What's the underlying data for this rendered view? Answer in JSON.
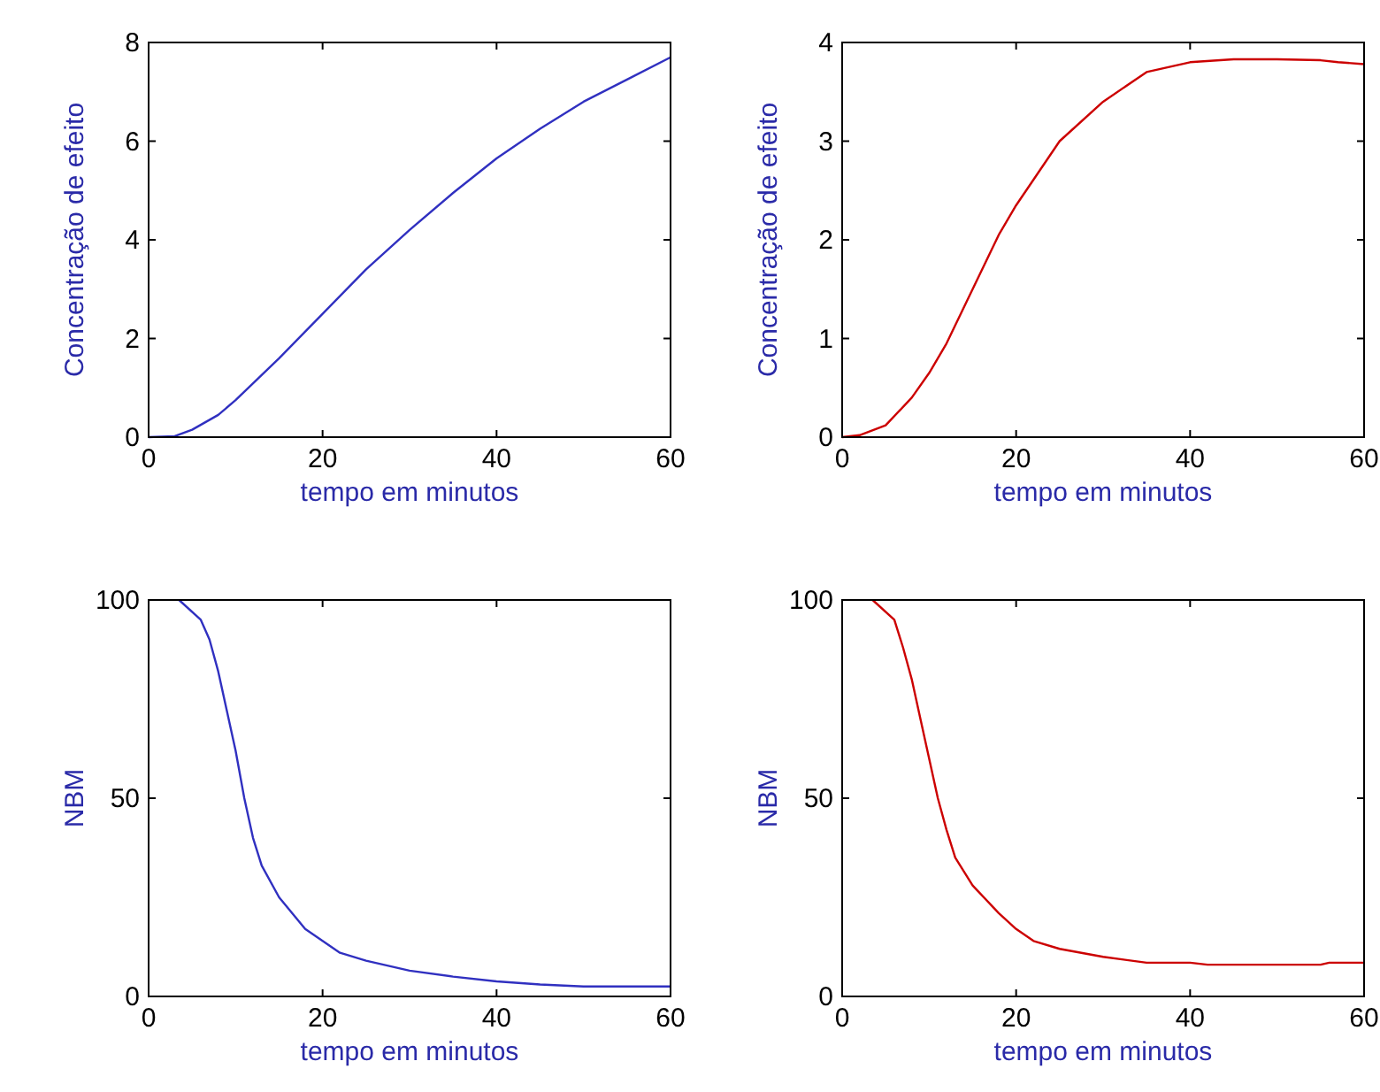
{
  "chart_data": [
    {
      "type": "line",
      "xlabel": "tempo em minutos",
      "ylabel": "Concentração de efeito",
      "xlim": [
        0,
        60
      ],
      "ylim": [
        0,
        8
      ],
      "xticks": [
        0,
        20,
        40,
        60
      ],
      "yticks": [
        0,
        2,
        4,
        6,
        8
      ],
      "grid": false,
      "series": [
        {
          "color": "#3030c0",
          "x": [
            0,
            3,
            5,
            8,
            10,
            15,
            20,
            25,
            30,
            35,
            40,
            45,
            50,
            55,
            60
          ],
          "values": [
            0,
            0.02,
            0.15,
            0.45,
            0.75,
            1.6,
            2.5,
            3.4,
            4.2,
            4.95,
            5.65,
            6.25,
            6.8,
            7.25,
            7.7
          ]
        }
      ]
    },
    {
      "type": "line",
      "xlabel": "tempo em minutos",
      "ylabel": "Concentração de efeito",
      "xlim": [
        0,
        60
      ],
      "ylim": [
        0,
        4
      ],
      "xticks": [
        0,
        20,
        40,
        60
      ],
      "yticks": [
        0,
        1,
        2,
        3,
        4
      ],
      "grid": false,
      "series": [
        {
          "color": "#cc0000",
          "x": [
            0,
            2,
            5,
            8,
            10,
            12,
            15,
            18,
            20,
            25,
            30,
            35,
            40,
            45,
            50,
            55,
            57,
            60
          ],
          "values": [
            0,
            0.02,
            0.12,
            0.4,
            0.65,
            0.95,
            1.5,
            2.05,
            2.35,
            3.0,
            3.4,
            3.7,
            3.8,
            3.83,
            3.83,
            3.82,
            3.8,
            3.78
          ]
        }
      ]
    },
    {
      "type": "line",
      "xlabel": "tempo em minutos",
      "ylabel": "NBM",
      "xlim": [
        0,
        60
      ],
      "ylim": [
        0,
        100
      ],
      "xticks": [
        0,
        20,
        40,
        60
      ],
      "yticks": [
        0,
        50,
        100
      ],
      "grid": false,
      "series": [
        {
          "color": "#3030c0",
          "x": [
            3.5,
            6,
            7,
            8,
            9,
            10,
            11,
            12,
            13,
            15,
            18,
            20,
            22,
            25,
            30,
            35,
            40,
            45,
            50,
            60
          ],
          "values": [
            100,
            95,
            90,
            82,
            72,
            62,
            50,
            40,
            33,
            25,
            17,
            14,
            11,
            9,
            6.5,
            5,
            3.8,
            3,
            2.5,
            2.5
          ]
        }
      ]
    },
    {
      "type": "line",
      "xlabel": "tempo em minutos",
      "ylabel": "NBM",
      "xlim": [
        0,
        60
      ],
      "ylim": [
        0,
        100
      ],
      "xticks": [
        0,
        20,
        40,
        60
      ],
      "yticks": [
        0,
        50,
        100
      ],
      "grid": false,
      "series": [
        {
          "color": "#cc0000",
          "x": [
            3.5,
            6,
            7,
            8,
            9,
            10,
            11,
            12,
            13,
            15,
            18,
            20,
            22,
            25,
            30,
            35,
            40,
            42,
            50,
            55,
            56,
            60
          ],
          "values": [
            100,
            95,
            88,
            80,
            70,
            60,
            50,
            42,
            35,
            28,
            21,
            17,
            14,
            12,
            10,
            8.5,
            8.5,
            8,
            8,
            8,
            8.5,
            8.5
          ]
        }
      ]
    }
  ]
}
